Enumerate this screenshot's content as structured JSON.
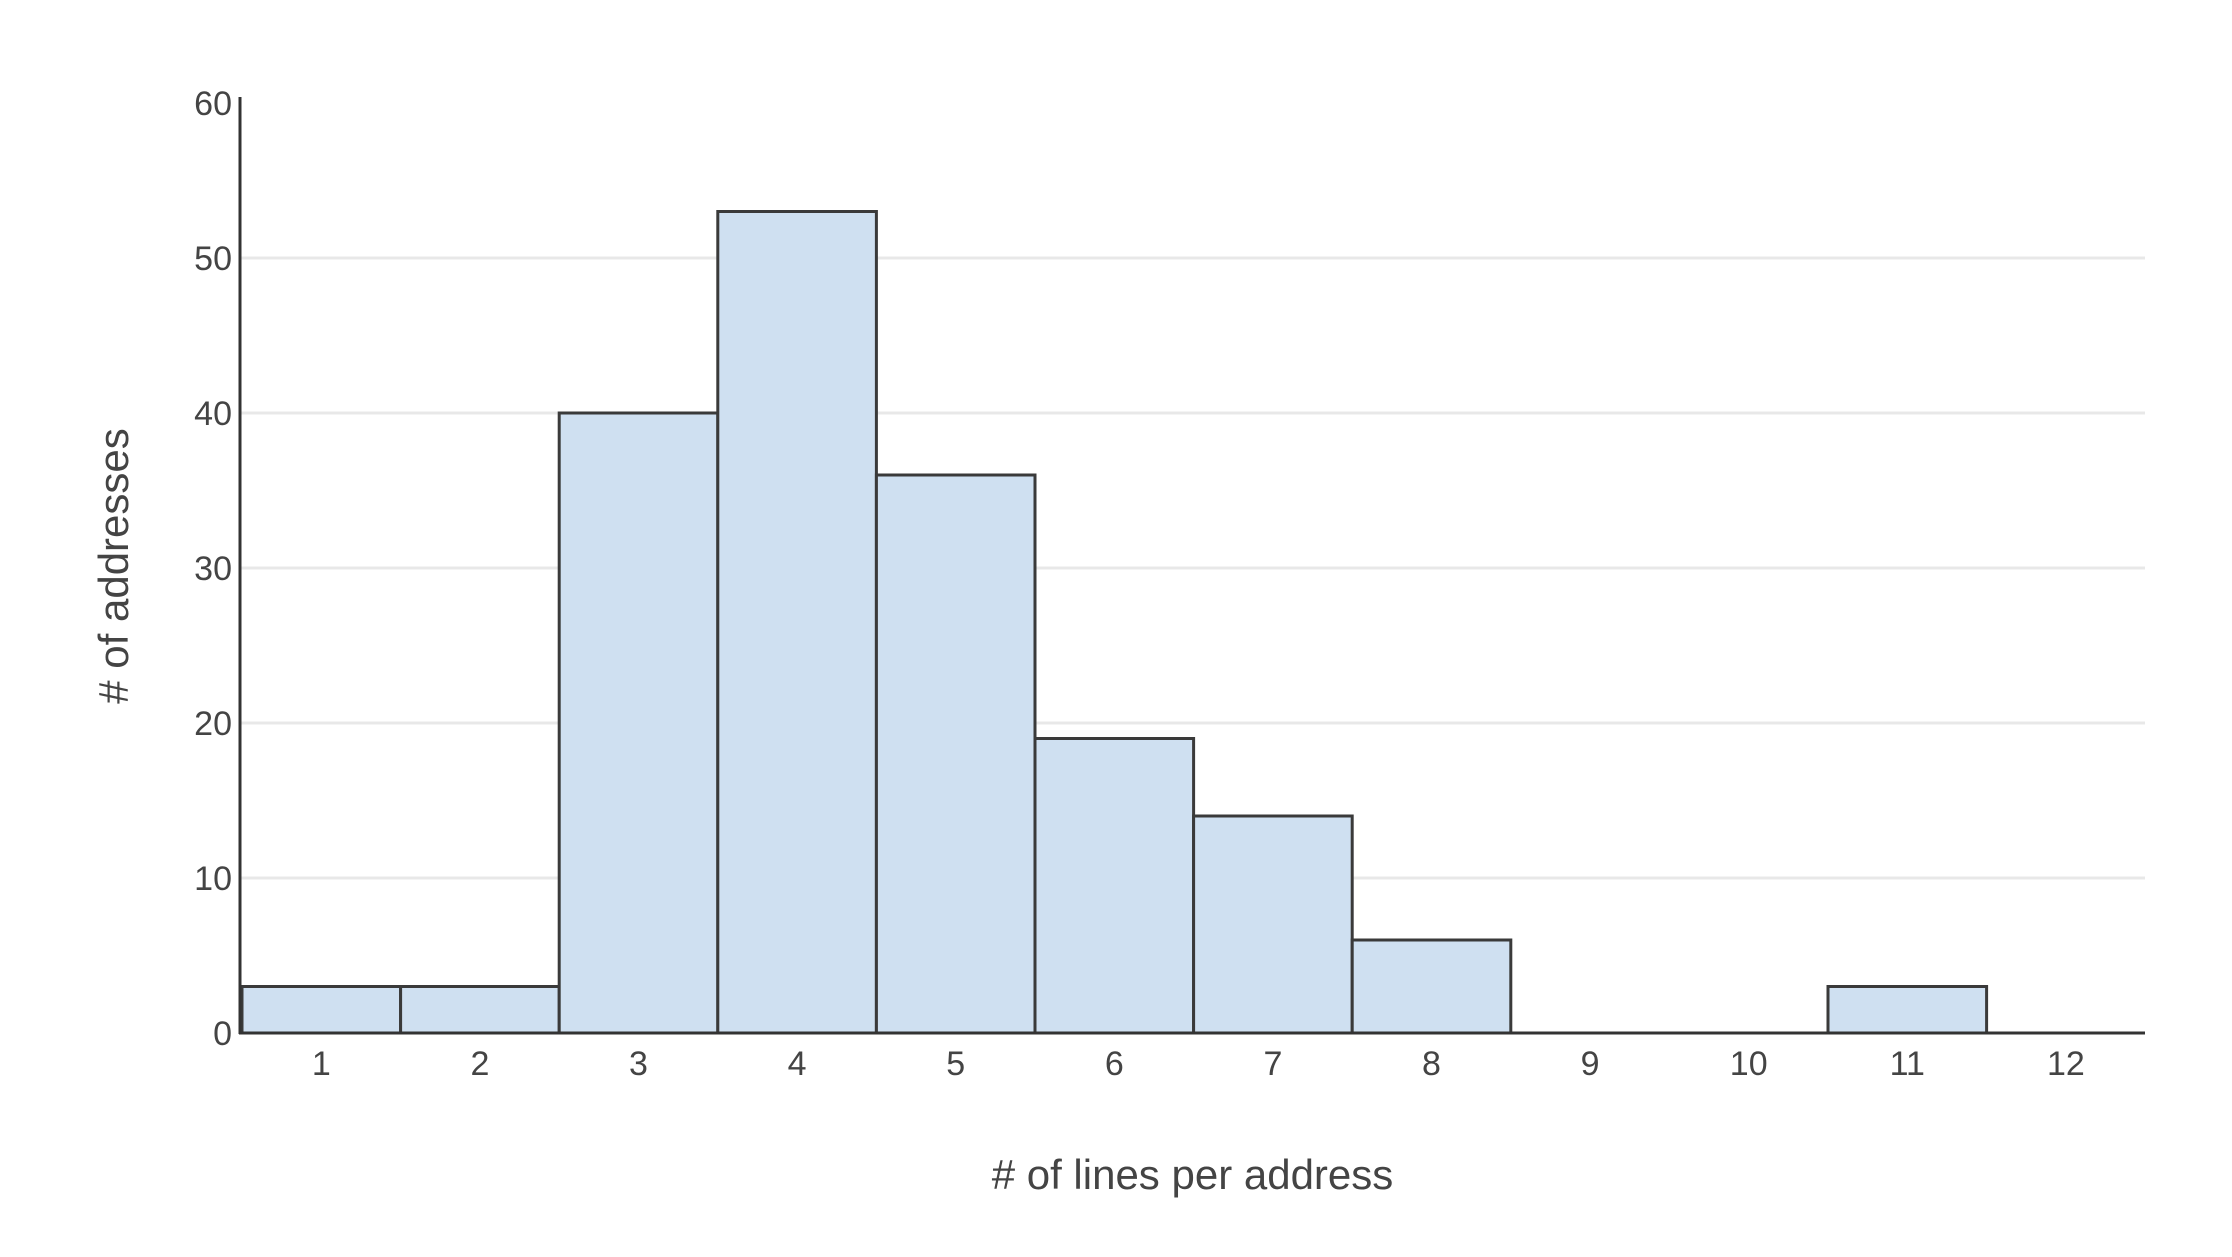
{
  "chart_data": {
    "type": "bar",
    "title": "",
    "xlabel": "# of lines per address",
    "ylabel": "# of addresses",
    "categories": [
      "1",
      "2",
      "3",
      "4",
      "5",
      "6",
      "7",
      "8",
      "9",
      "10",
      "11",
      "12"
    ],
    "values": [
      3,
      3,
      40,
      53,
      36,
      19,
      14,
      6,
      0,
      0,
      3,
      0
    ],
    "ylim": [
      0,
      60
    ],
    "yticks": [
      "0",
      "10",
      "20",
      "30",
      "40",
      "50",
      "60"
    ],
    "grid": true,
    "colors": {
      "bar_fill": "#cfe0f1",
      "bar_stroke": "#3a3a3a",
      "gridline": "#e8e8e8",
      "axis": "#333333",
      "text": "#444444"
    }
  }
}
